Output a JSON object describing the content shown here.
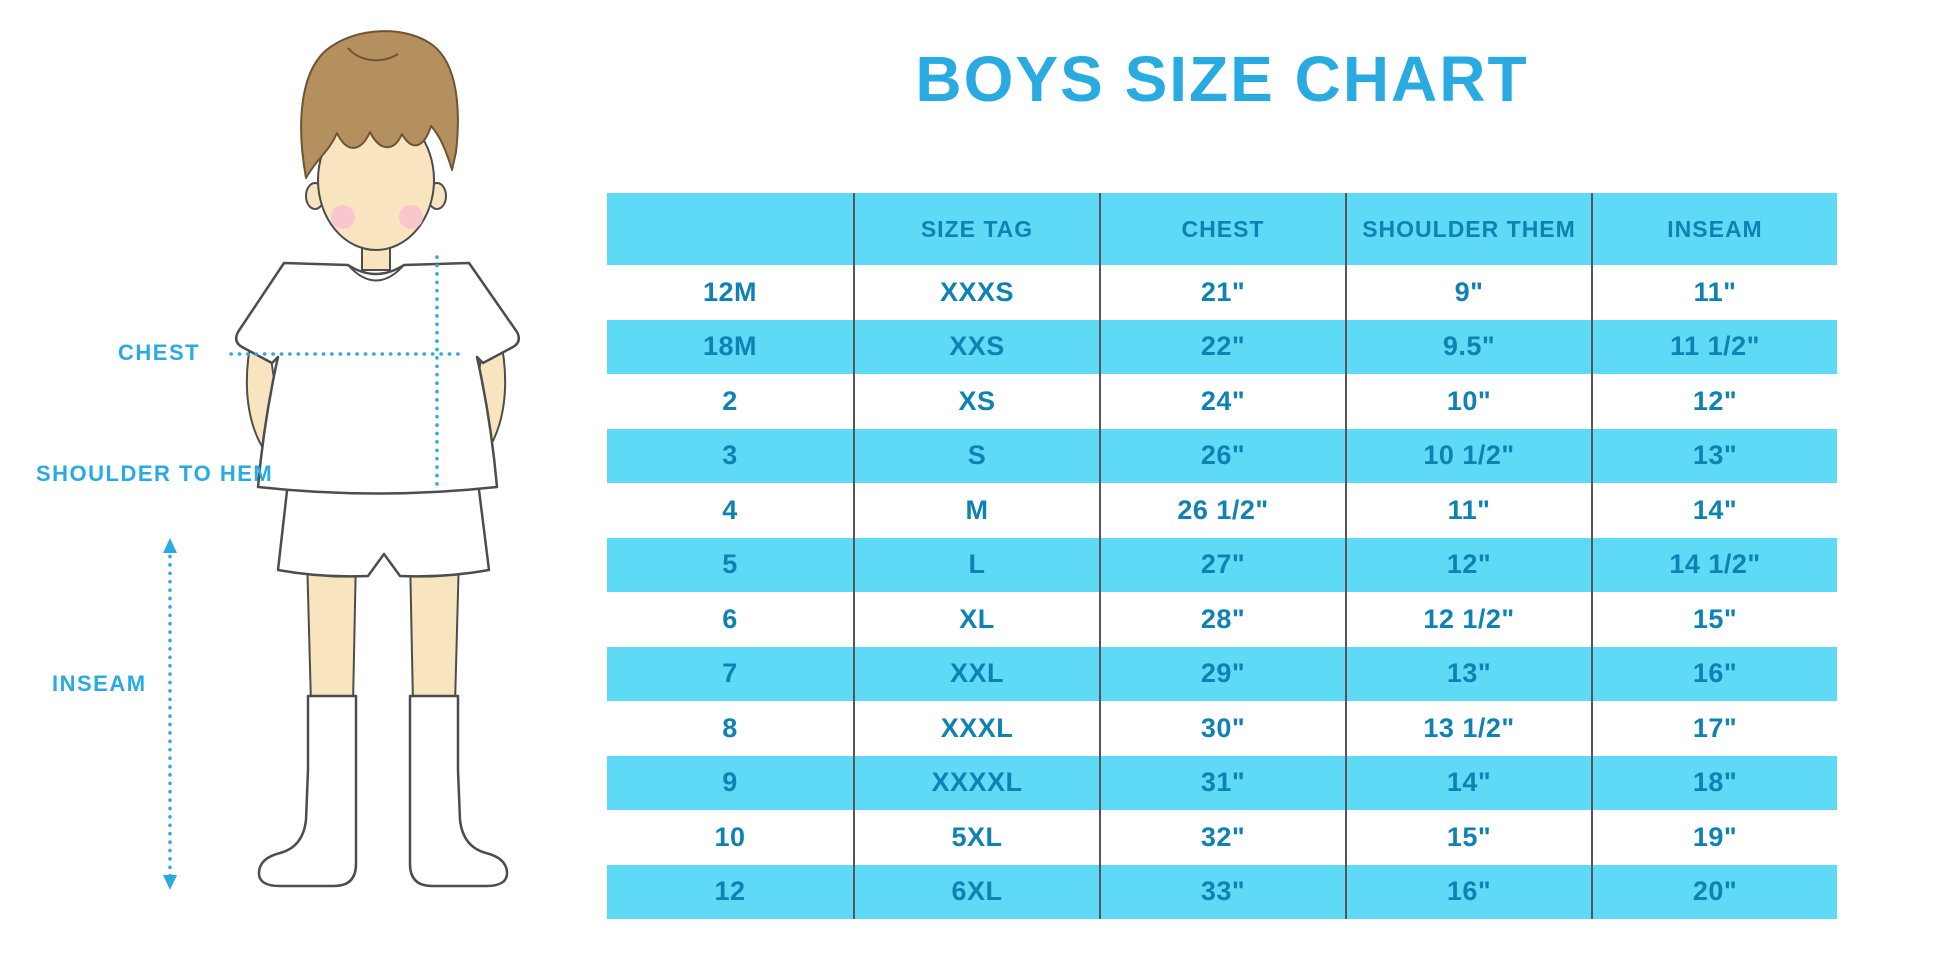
{
  "chart_data": {
    "type": "table",
    "title": "BOYS SIZE CHART",
    "columns": [
      "",
      "SIZE TAG",
      "CHEST",
      "SHOULDER THEM",
      "INSEAM"
    ],
    "rows": [
      [
        "12M",
        "XXXS",
        "21\"",
        "9\"",
        "11\""
      ],
      [
        "18M",
        "XXS",
        "22\"",
        "9.5\"",
        "11 1/2\""
      ],
      [
        "2",
        "XS",
        "24\"",
        "10\"",
        "12\""
      ],
      [
        "3",
        "S",
        "26\"",
        "10 1/2\"",
        "13\""
      ],
      [
        "4",
        "M",
        "26 1/2\"",
        "11\"",
        "14\""
      ],
      [
        "5",
        "L",
        "27\"",
        "12\"",
        "14 1/2\""
      ],
      [
        "6",
        "XL",
        "28\"",
        "12 1/2\"",
        "15\""
      ],
      [
        "7",
        "XXL",
        "29\"",
        "13\"",
        "16\""
      ],
      [
        "8",
        "XXXL",
        "30\"",
        "13 1/2\"",
        "17\""
      ],
      [
        "9",
        "XXXXL",
        "31\"",
        "14\"",
        "18\""
      ],
      [
        "10",
        "5XL",
        "32\"",
        "15\"",
        "19\""
      ],
      [
        "12",
        "6XL",
        "33\"",
        "16\"",
        "20\""
      ]
    ],
    "layout": {
      "header_background": "striped-cyan",
      "row_alternation": [
        "white",
        "cyan"
      ],
      "column_dividers": true
    }
  },
  "diagram": {
    "chest_label": "CHEST",
    "shoulder_to_hem_label": "SHOULDER TO HEM",
    "inseam_label": "INSEAM"
  },
  "colors": {
    "accent": "#29ABE2",
    "stripe": "#5EDAF7",
    "table_text": "#0F82B4",
    "divider": "#55565A",
    "skin": "#F8E5BF",
    "hair": "#B3905E",
    "hair_outline": "#6E5433",
    "outline": "#4D4D4D",
    "cheek": "#F6C3CE"
  }
}
